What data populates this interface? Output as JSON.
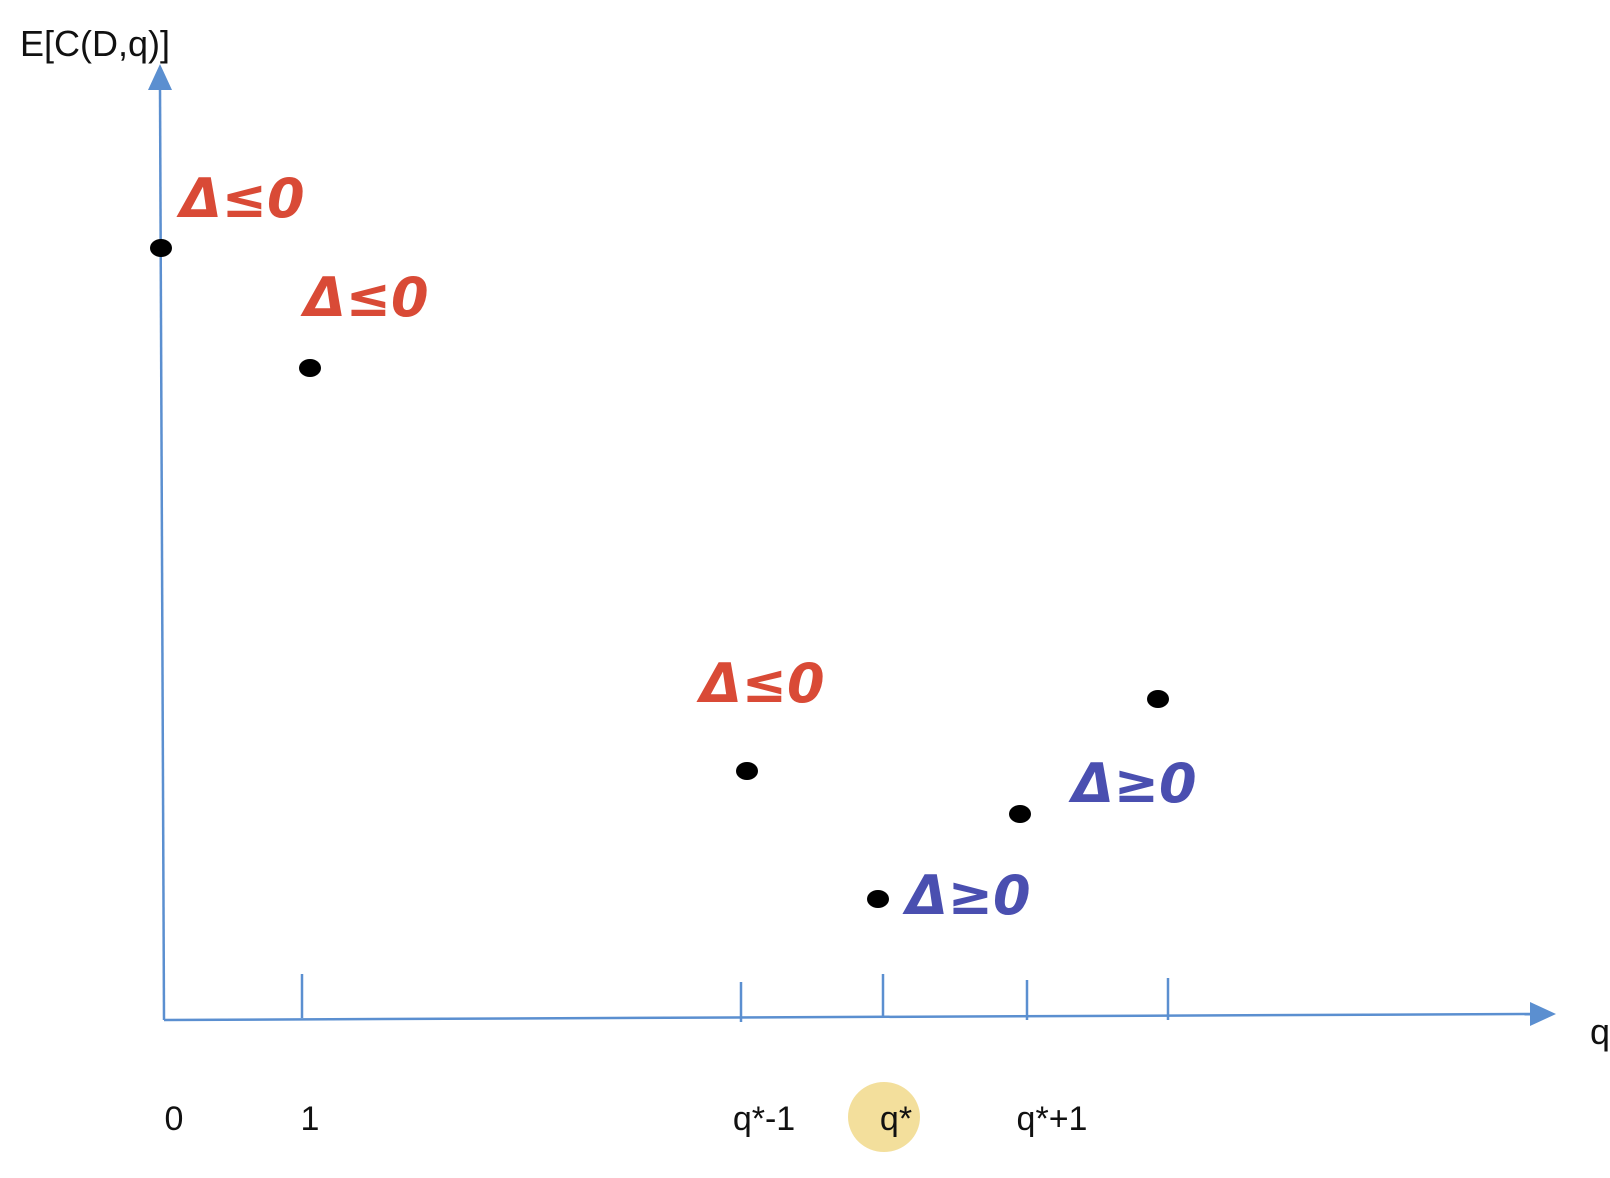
{
  "y_axis_label": "E[C(D,q)]",
  "x_axis_label": "q",
  "tick_labels": [
    "0",
    "1",
    "q*-1",
    "q*",
    "q*+1"
  ],
  "highlighted_tick": "q*",
  "points": [
    {
      "name": "point-q0"
    },
    {
      "name": "point-q1"
    },
    {
      "name": "point-qstar-minus-1"
    },
    {
      "name": "point-qstar"
    },
    {
      "name": "point-qstar-plus-1"
    },
    {
      "name": "point-qstar-plus-2"
    }
  ],
  "annotations": [
    {
      "text": "Δ≤0",
      "color": "#d94a36"
    },
    {
      "text": "Δ≤0",
      "color": "#d94a36"
    },
    {
      "text": "Δ≤0",
      "color": "#d94a36"
    },
    {
      "text": "Δ≥0",
      "color": "#4a4fb0"
    },
    {
      "text": "Δ≥0",
      "color": "#4a4fb0"
    }
  ],
  "colors": {
    "axis": "#5b8fd0",
    "point": "#000000",
    "decrease": "#d94a36",
    "increase": "#4a4fb0",
    "highlight": "#f3df9c"
  }
}
